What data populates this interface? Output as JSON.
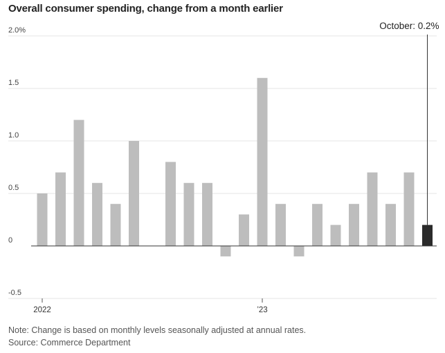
{
  "title": "Overall consumer spending, change from a month earlier",
  "notes": {
    "note": "Note: Change is based on monthly levels seasonally adjusted at annual rates.",
    "source": "Source: Commerce Department"
  },
  "colors": {
    "bar": "#bdbdbd",
    "highlight": "#2b2b2b",
    "grid": "#e6e6e6",
    "zero": "#333333"
  },
  "chart_data": {
    "type": "bar",
    "title": "Overall consumer spending, change from a month earlier",
    "xlabel": "",
    "ylabel": "",
    "ylim": [
      -0.5,
      2.0
    ],
    "yticks": [
      {
        "value": 2.0,
        "label": "2.0%"
      },
      {
        "value": 1.5,
        "label": "1.5"
      },
      {
        "value": 1.0,
        "label": "1.0"
      },
      {
        "value": 0.5,
        "label": "0.5"
      },
      {
        "value": 0,
        "label": "0"
      },
      {
        "value": -0.5,
        "label": "-0.5"
      }
    ],
    "xticks": [
      {
        "index": 0,
        "label": "2022"
      },
      {
        "index": 12,
        "label": "’23"
      }
    ],
    "categories": [
      "Jan 2022",
      "Feb 2022",
      "Mar 2022",
      "Apr 2022",
      "May 2022",
      "Jun 2022",
      "Jul 2022",
      "Aug 2022",
      "Sep 2022",
      "Oct 2022",
      "Nov 2022",
      "Dec 2022",
      "Jan 2023",
      "Feb 2023",
      "Mar 2023",
      "Apr 2023",
      "May 2023",
      "Jun 2023",
      "Jul 2023",
      "Aug 2023",
      "Sep 2023",
      "Oct 2023"
    ],
    "values": [
      0.5,
      0.7,
      1.2,
      0.6,
      0.4,
      1.0,
      0.0,
      0.8,
      0.6,
      0.6,
      -0.1,
      0.3,
      1.6,
      0.4,
      -0.1,
      0.4,
      0.2,
      0.4,
      0.7,
      0.4,
      0.7,
      0.2
    ],
    "highlight_index": 21,
    "annotation": {
      "text": "October: 0.2%",
      "index": 21
    },
    "grid": true
  }
}
